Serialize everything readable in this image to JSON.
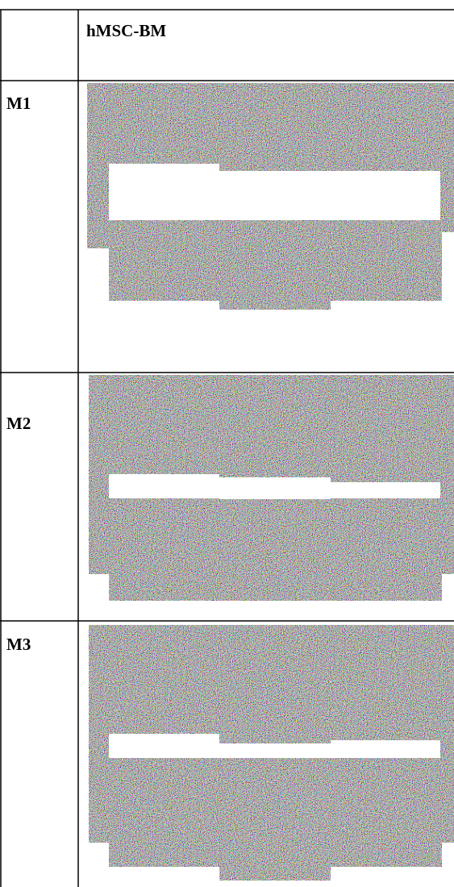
{
  "table": {
    "header": "hMSC-BM",
    "rows": [
      "M1",
      "M2",
      "M3"
    ]
  }
}
